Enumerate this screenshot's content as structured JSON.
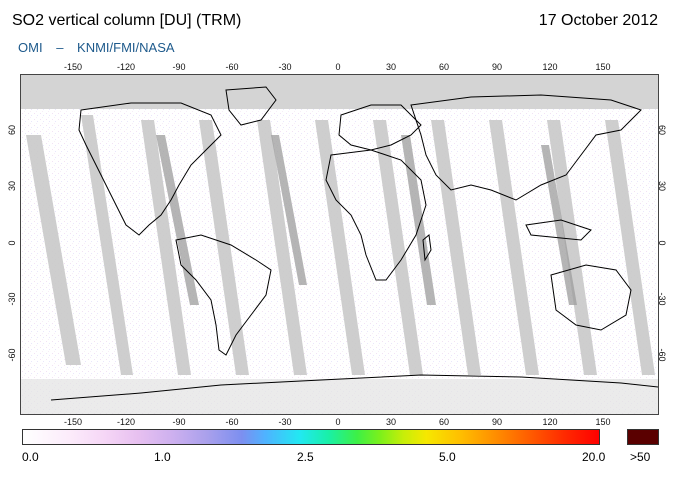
{
  "title": "SO2 vertical column [DU] (TRM)",
  "date": "17 October 2012",
  "credit": {
    "left": "OMI",
    "sep": "–",
    "right": "KNMI/FMI/NASA"
  },
  "map": {
    "projection": "equirectangular",
    "lon_ticks_top": [
      "-150",
      "-120",
      "-90",
      "-60",
      "-30",
      "0",
      "30",
      "60",
      "90",
      "120",
      "150"
    ],
    "lon_ticks_bottom": [
      "-150",
      "-120",
      "-90",
      "-60",
      "-30",
      "0",
      "30",
      "60",
      "90",
      "120",
      "150"
    ],
    "lat_ticks": [
      "60",
      "30",
      "0",
      "-30",
      "-60"
    ],
    "colors": {
      "land_outline": "#000000",
      "gap_band": "#c8c8c8",
      "gap_band_dark": "#9a9a9a",
      "no_data": "#d9d9d9"
    }
  },
  "colorbar": {
    "labels": [
      "0.0",
      "1.0",
      "2.5",
      "5.0",
      "20.0"
    ],
    "overflow_label": ">50",
    "overflow_color": "#5a0000"
  }
}
